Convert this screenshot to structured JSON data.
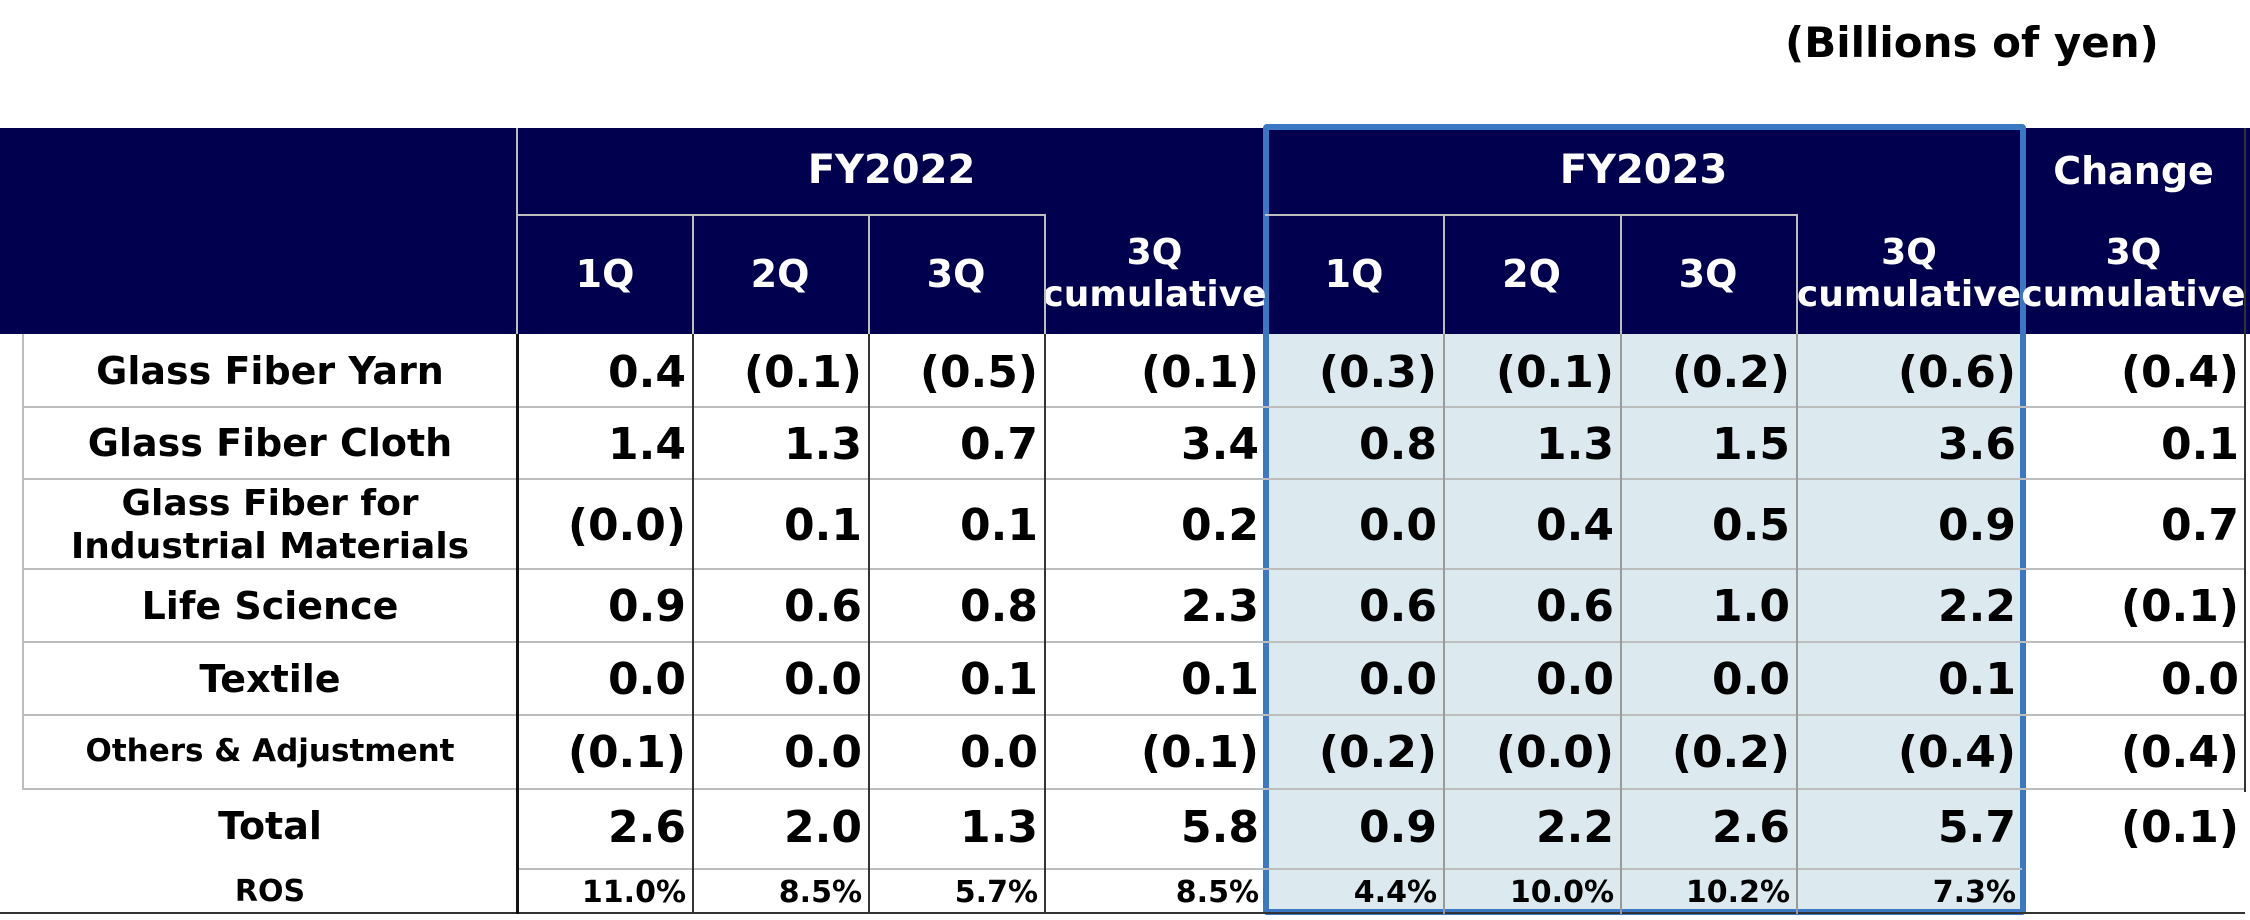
{
  "unit_label": "(Billions of yen)",
  "header": {
    "fy2022": "FY2022",
    "fy2023": "FY2023",
    "change": "Change",
    "q1": "1Q",
    "q2": "2Q",
    "q3": "3Q",
    "cumulative": "3Q\ncumulative"
  },
  "rows": [
    {
      "label": "Glass Fiber Yarn",
      "values": [
        "0.4",
        "(0.1)",
        "(0.5)",
        "(0.1)",
        "(0.3)",
        "(0.1)",
        "(0.2)",
        "(0.6)",
        "(0.4)"
      ]
    },
    {
      "label": "Glass Fiber Cloth",
      "values": [
        "1.4",
        "1.3",
        "0.7",
        "3.4",
        "0.8",
        "1.3",
        "1.5",
        "3.6",
        "0.1"
      ]
    },
    {
      "label": "Glass Fiber for\nIndustrial Materials",
      "values": [
        "(0.0)",
        "0.1",
        "0.1",
        "0.2",
        "0.0",
        "0.4",
        "0.5",
        "0.9",
        "0.7"
      ]
    },
    {
      "label": "Life Science",
      "values": [
        "0.9",
        "0.6",
        "0.8",
        "2.3",
        "0.6",
        "0.6",
        "1.0",
        "2.2",
        "(0.1)"
      ]
    },
    {
      "label": "Textile",
      "values": [
        "0.0",
        "0.0",
        "0.1",
        "0.1",
        "0.0",
        "0.0",
        "0.0",
        "0.1",
        "0.0"
      ]
    },
    {
      "label": "Others & Adjustment",
      "values": [
        "(0.1)",
        "0.0",
        "0.0",
        "(0.1)",
        "(0.2)",
        "(0.0)",
        "(0.2)",
        "(0.4)",
        "(0.4)"
      ]
    }
  ],
  "total": {
    "label": "Total",
    "values": [
      "2.6",
      "2.0",
      "1.3",
      "5.8",
      "0.9",
      "2.2",
      "2.6",
      "5.7",
      "(0.1)"
    ]
  },
  "ros": {
    "label": "ROS",
    "values": [
      "11.0%",
      "8.5%",
      "5.7%",
      "8.5%",
      "4.4%",
      "10.0%",
      "10.2%",
      "7.3%"
    ]
  },
  "colors": {
    "header_bg": "#00004e",
    "highlight_fill": "#dceaf0",
    "highlight_border": "#3b78c3"
  }
}
